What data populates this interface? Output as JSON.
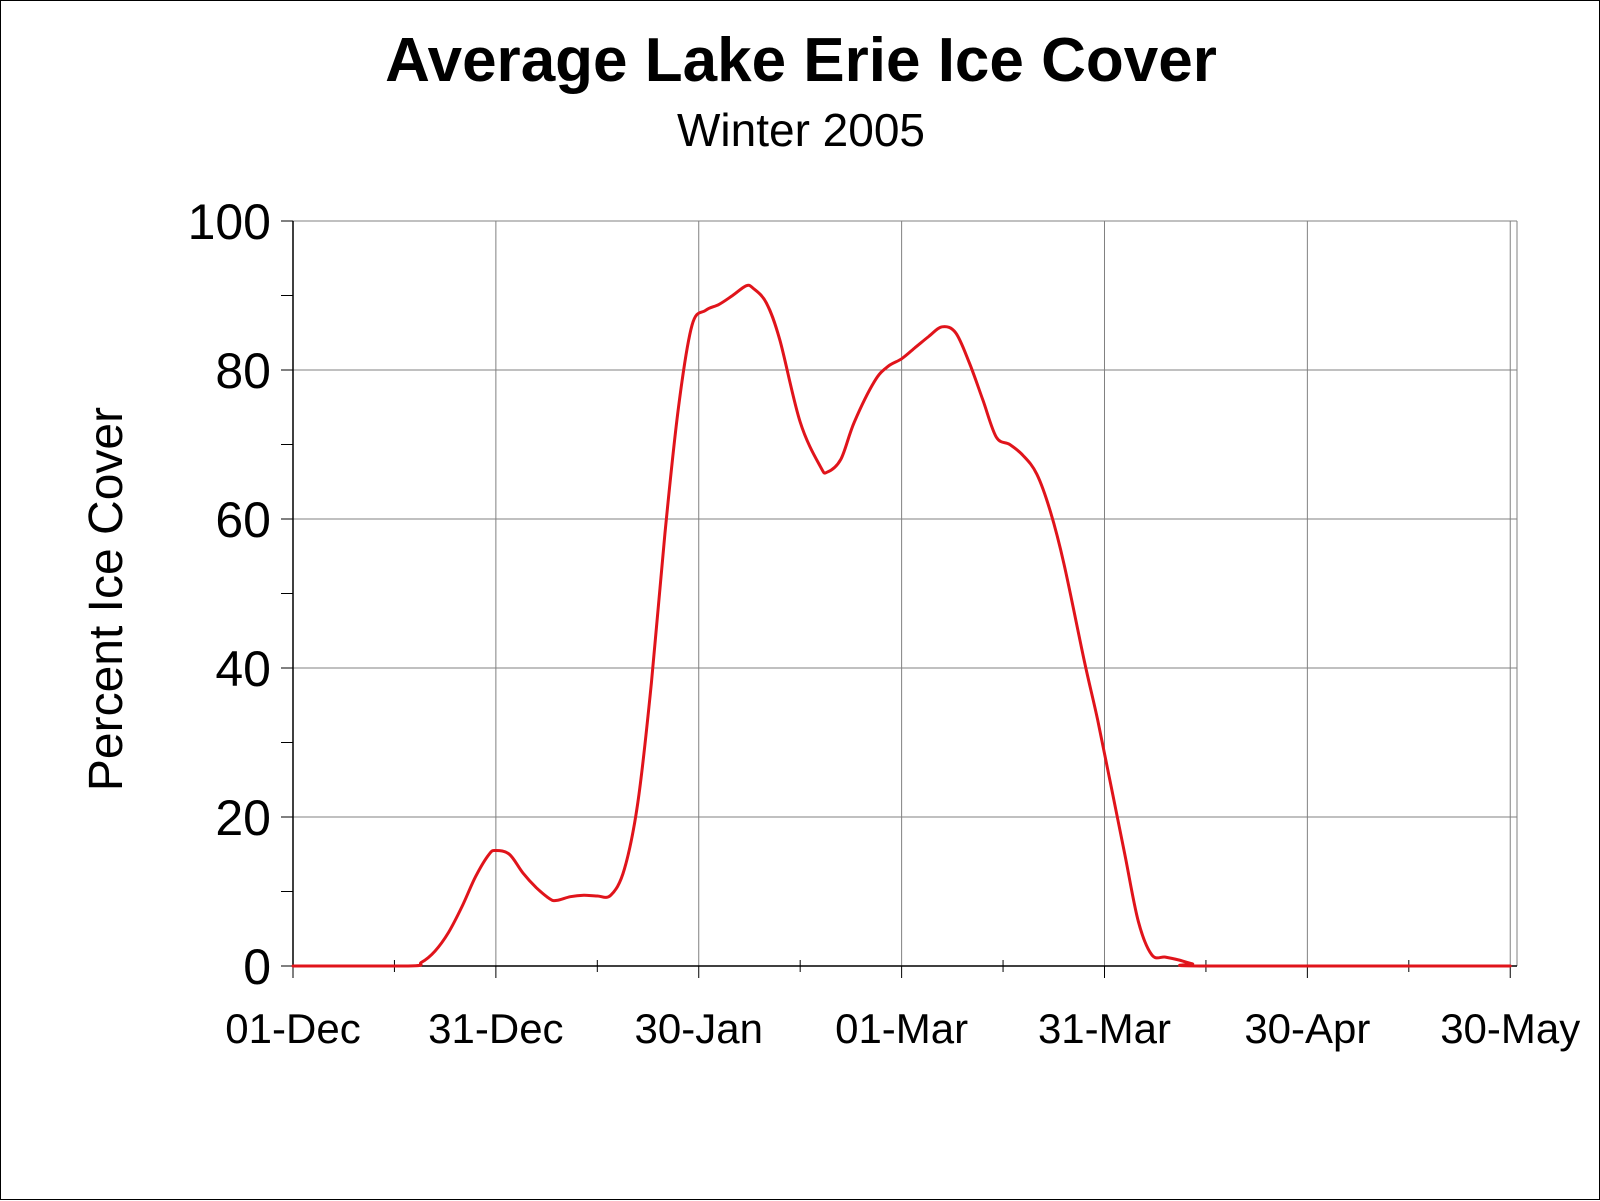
{
  "colors": {
    "series": "#e0141b",
    "grid": "#808080",
    "axis": "#000000",
    "background": "#ffffff"
  },
  "chart_data": {
    "type": "line",
    "title": "Average Lake Erie Ice Cover",
    "subtitle": "Winter 2005",
    "xlabel": "",
    "ylabel": "Percent Ice Cover",
    "xlim": [
      "2004-12-01",
      "2005-05-31"
    ],
    "ylim": [
      0,
      100
    ],
    "x_ticks": [
      "01-Dec",
      "31-Dec",
      "30-Jan",
      "01-Mar",
      "31-Mar",
      "30-Apr",
      "30-May"
    ],
    "x_tick_dates": [
      "2004-12-01",
      "2004-12-31",
      "2005-01-30",
      "2005-03-01",
      "2005-03-31",
      "2005-04-30",
      "2005-05-30"
    ],
    "y_ticks": [
      "0",
      "20",
      "40",
      "60",
      "80",
      "100"
    ],
    "grid": true,
    "legend": "none",
    "series": [
      {
        "color": "#e0141b",
        "points": [
          [
            "2004-12-01",
            0
          ],
          [
            "2004-12-18",
            0
          ],
          [
            "2004-12-20",
            0.5
          ],
          [
            "2004-12-22",
            2
          ],
          [
            "2004-12-24",
            4.5
          ],
          [
            "2004-12-26",
            8
          ],
          [
            "2004-12-28",
            12
          ],
          [
            "2004-12-30",
            15
          ],
          [
            "2004-12-31",
            15.5
          ],
          [
            "2005-01-02",
            15
          ],
          [
            "2005-01-04",
            12.5
          ],
          [
            "2005-01-06",
            10.5
          ],
          [
            "2005-01-08",
            9
          ],
          [
            "2005-01-09",
            8.8
          ],
          [
            "2005-01-11",
            9.3
          ],
          [
            "2005-01-13",
            9.5
          ],
          [
            "2005-01-15",
            9.4
          ],
          [
            "2005-01-17",
            9.5
          ],
          [
            "2005-01-19",
            13
          ],
          [
            "2005-01-21",
            22
          ],
          [
            "2005-01-23",
            38
          ],
          [
            "2005-01-25",
            58
          ],
          [
            "2005-01-27",
            75
          ],
          [
            "2005-01-29",
            86
          ],
          [
            "2005-01-31",
            88
          ],
          [
            "2005-02-02",
            88.8
          ],
          [
            "2005-02-04",
            90
          ],
          [
            "2005-02-06",
            91.3
          ],
          [
            "2005-02-07",
            91
          ],
          [
            "2005-02-09",
            89
          ],
          [
            "2005-02-11",
            84
          ],
          [
            "2005-02-14",
            73
          ],
          [
            "2005-02-17",
            67
          ],
          [
            "2005-02-18",
            66.3
          ],
          [
            "2005-02-20",
            68
          ],
          [
            "2005-02-22",
            73
          ],
          [
            "2005-02-25",
            78.5
          ],
          [
            "2005-02-27",
            80.5
          ],
          [
            "2005-03-01",
            81.5
          ],
          [
            "2005-03-03",
            83
          ],
          [
            "2005-03-05",
            84.5
          ],
          [
            "2005-03-07",
            85.8
          ],
          [
            "2005-03-09",
            85
          ],
          [
            "2005-03-11",
            81
          ],
          [
            "2005-03-13",
            76
          ],
          [
            "2005-03-15",
            71
          ],
          [
            "2005-03-17",
            70
          ],
          [
            "2005-03-19",
            68.5
          ],
          [
            "2005-03-21",
            66
          ],
          [
            "2005-03-23",
            61
          ],
          [
            "2005-03-25",
            54
          ],
          [
            "2005-03-28",
            41
          ],
          [
            "2005-03-30",
            33
          ],
          [
            "2005-04-01",
            24
          ],
          [
            "2005-04-03",
            15
          ],
          [
            "2005-04-05",
            6
          ],
          [
            "2005-04-07",
            1.5
          ],
          [
            "2005-04-09",
            1.2
          ],
          [
            "2005-04-11",
            0.8
          ],
          [
            "2005-04-13",
            0.3
          ],
          [
            "2005-04-15",
            0
          ],
          [
            "2005-05-30",
            0
          ]
        ]
      }
    ]
  }
}
